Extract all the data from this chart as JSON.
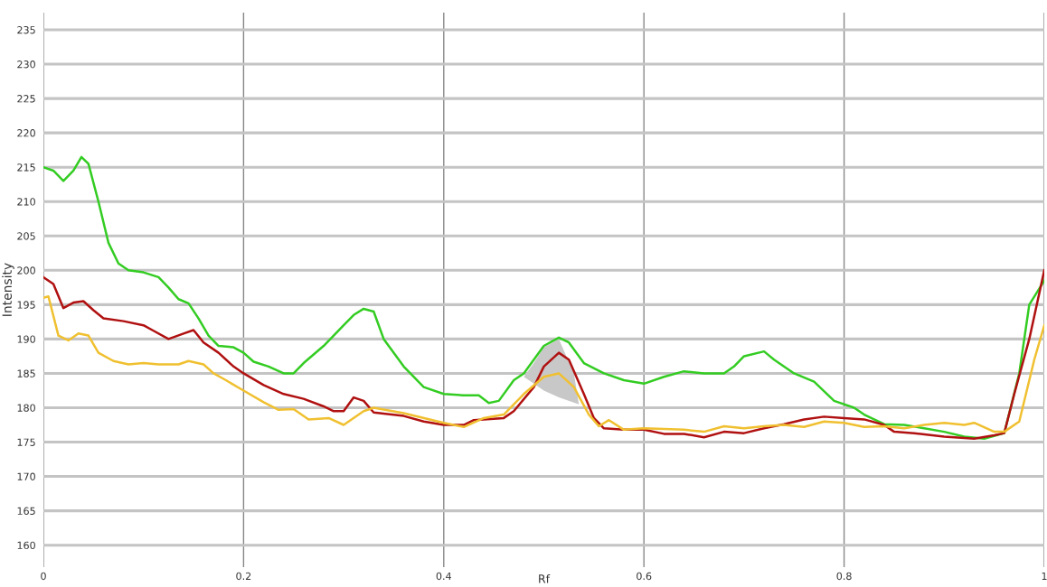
{
  "chart_data": {
    "type": "line",
    "xlabel": "Rf",
    "ylabel": "Intensity",
    "xlim": [
      0,
      1
    ],
    "ylim": [
      156.8,
      237.5
    ],
    "xticks": [
      0,
      0.2,
      0.4,
      0.6,
      0.8,
      1
    ],
    "yticks": [
      160,
      165,
      170,
      175,
      180,
      185,
      190,
      195,
      200,
      205,
      210,
      215,
      220,
      225,
      230,
      235
    ],
    "grid": true,
    "marker": "none",
    "line_style": "solid",
    "series": [
      {
        "type": "area",
        "color": "#c8c8c8",
        "x": [
          0.48,
          0.49,
          0.5,
          0.515,
          0.53,
          0.535,
          0.515,
          0.5,
          0.49
        ],
        "values": [
          184.5,
          186.5,
          188.8,
          190,
          185,
          180.5,
          181.5,
          182.5,
          183.5
        ]
      },
      {
        "color": "#33cc22",
        "x": [
          0,
          0.01,
          0.02,
          0.03,
          0.038,
          0.045,
          0.055,
          0.065,
          0.075,
          0.085,
          0.1,
          0.115,
          0.125,
          0.135,
          0.145,
          0.155,
          0.165,
          0.175,
          0.19,
          0.2,
          0.21,
          0.225,
          0.24,
          0.25,
          0.26,
          0.28,
          0.3,
          0.31,
          0.32,
          0.33,
          0.34,
          0.36,
          0.38,
          0.4,
          0.42,
          0.435,
          0.445,
          0.455,
          0.47,
          0.48,
          0.49,
          0.5,
          0.515,
          0.525,
          0.54,
          0.56,
          0.58,
          0.6,
          0.62,
          0.64,
          0.66,
          0.68,
          0.69,
          0.7,
          0.72,
          0.73,
          0.75,
          0.77,
          0.79,
          0.81,
          0.82,
          0.84,
          0.86,
          0.88,
          0.9,
          0.92,
          0.94,
          0.96,
          0.975,
          0.985,
          1.0
        ],
        "values": [
          215,
          214.5,
          213,
          214.5,
          216.5,
          215.5,
          210,
          204,
          201,
          200,
          199.7,
          199,
          197.5,
          195.8,
          195.2,
          193,
          190.5,
          189,
          188.8,
          188,
          186.7,
          186,
          185,
          185,
          186.5,
          189,
          192,
          193.5,
          194.4,
          194,
          190,
          186,
          183,
          182,
          181.8,
          181.8,
          180.7,
          181,
          184,
          185,
          187,
          189,
          190.2,
          189.5,
          186.5,
          185,
          184,
          183.5,
          184.5,
          185.3,
          185,
          185,
          186,
          187.5,
          188.2,
          187,
          185,
          183.8,
          181,
          180,
          179,
          177.6,
          177.5,
          177,
          176.5,
          175.8,
          175.5,
          176.3,
          185,
          195,
          198.5
        ]
      },
      {
        "color": "#b01010",
        "x": [
          0,
          0.01,
          0.02,
          0.03,
          0.04,
          0.05,
          0.06,
          0.08,
          0.1,
          0.11,
          0.125,
          0.14,
          0.15,
          0.16,
          0.175,
          0.19,
          0.2,
          0.22,
          0.24,
          0.26,
          0.28,
          0.29,
          0.3,
          0.31,
          0.32,
          0.33,
          0.36,
          0.38,
          0.4,
          0.42,
          0.43,
          0.46,
          0.47,
          0.49,
          0.5,
          0.515,
          0.525,
          0.54,
          0.55,
          0.56,
          0.58,
          0.6,
          0.62,
          0.64,
          0.66,
          0.68,
          0.7,
          0.72,
          0.74,
          0.76,
          0.78,
          0.8,
          0.82,
          0.84,
          0.85,
          0.87,
          0.9,
          0.93,
          0.95,
          0.96,
          0.97,
          0.985,
          1.0
        ],
        "values": [
          199,
          198,
          194.5,
          195.3,
          195.5,
          194.2,
          193,
          192.6,
          192,
          191.2,
          190,
          190.8,
          191.3,
          189.5,
          188,
          186,
          185,
          183.3,
          182,
          181.3,
          180.2,
          179.5,
          179.5,
          181.5,
          181,
          179.3,
          178.8,
          178,
          177.5,
          177.5,
          178.2,
          178.5,
          179.5,
          183,
          186,
          188,
          187,
          182,
          178.5,
          177,
          176.8,
          176.8,
          176.2,
          176.2,
          175.7,
          176.5,
          176.3,
          177,
          177.6,
          178.3,
          178.7,
          178.5,
          178.3,
          177.5,
          176.5,
          176.3,
          175.8,
          175.5,
          176,
          176.3,
          182,
          190,
          200
        ]
      },
      {
        "color": "#f0c030",
        "x": [
          0,
          0.005,
          0.015,
          0.025,
          0.035,
          0.045,
          0.055,
          0.07,
          0.085,
          0.1,
          0.115,
          0.135,
          0.145,
          0.16,
          0.17,
          0.18,
          0.2,
          0.22,
          0.235,
          0.25,
          0.265,
          0.285,
          0.3,
          0.32,
          0.33,
          0.36,
          0.4,
          0.42,
          0.44,
          0.46,
          0.48,
          0.5,
          0.515,
          0.53,
          0.545,
          0.555,
          0.565,
          0.58,
          0.6,
          0.64,
          0.66,
          0.68,
          0.7,
          0.72,
          0.74,
          0.76,
          0.78,
          0.8,
          0.82,
          0.84,
          0.86,
          0.88,
          0.9,
          0.92,
          0.93,
          0.95,
          0.96,
          0.975,
          0.99,
          1.0
        ],
        "values": [
          196,
          196.2,
          190.5,
          189.8,
          190.8,
          190.5,
          188,
          186.8,
          186.3,
          186.5,
          186.3,
          186.3,
          186.8,
          186.3,
          185,
          184.2,
          182.5,
          180.8,
          179.7,
          179.8,
          178.3,
          178.5,
          177.5,
          179.5,
          180,
          179.2,
          177.8,
          177.2,
          178.5,
          179,
          182,
          184.5,
          185,
          183,
          179,
          177.3,
          178.2,
          176.8,
          177,
          176.8,
          176.5,
          177.3,
          177,
          177.3,
          177.5,
          177.2,
          178,
          177.8,
          177.2,
          177.3,
          177,
          177.5,
          177.8,
          177.5,
          177.8,
          176.5,
          176.5,
          178,
          187,
          192
        ]
      }
    ]
  }
}
